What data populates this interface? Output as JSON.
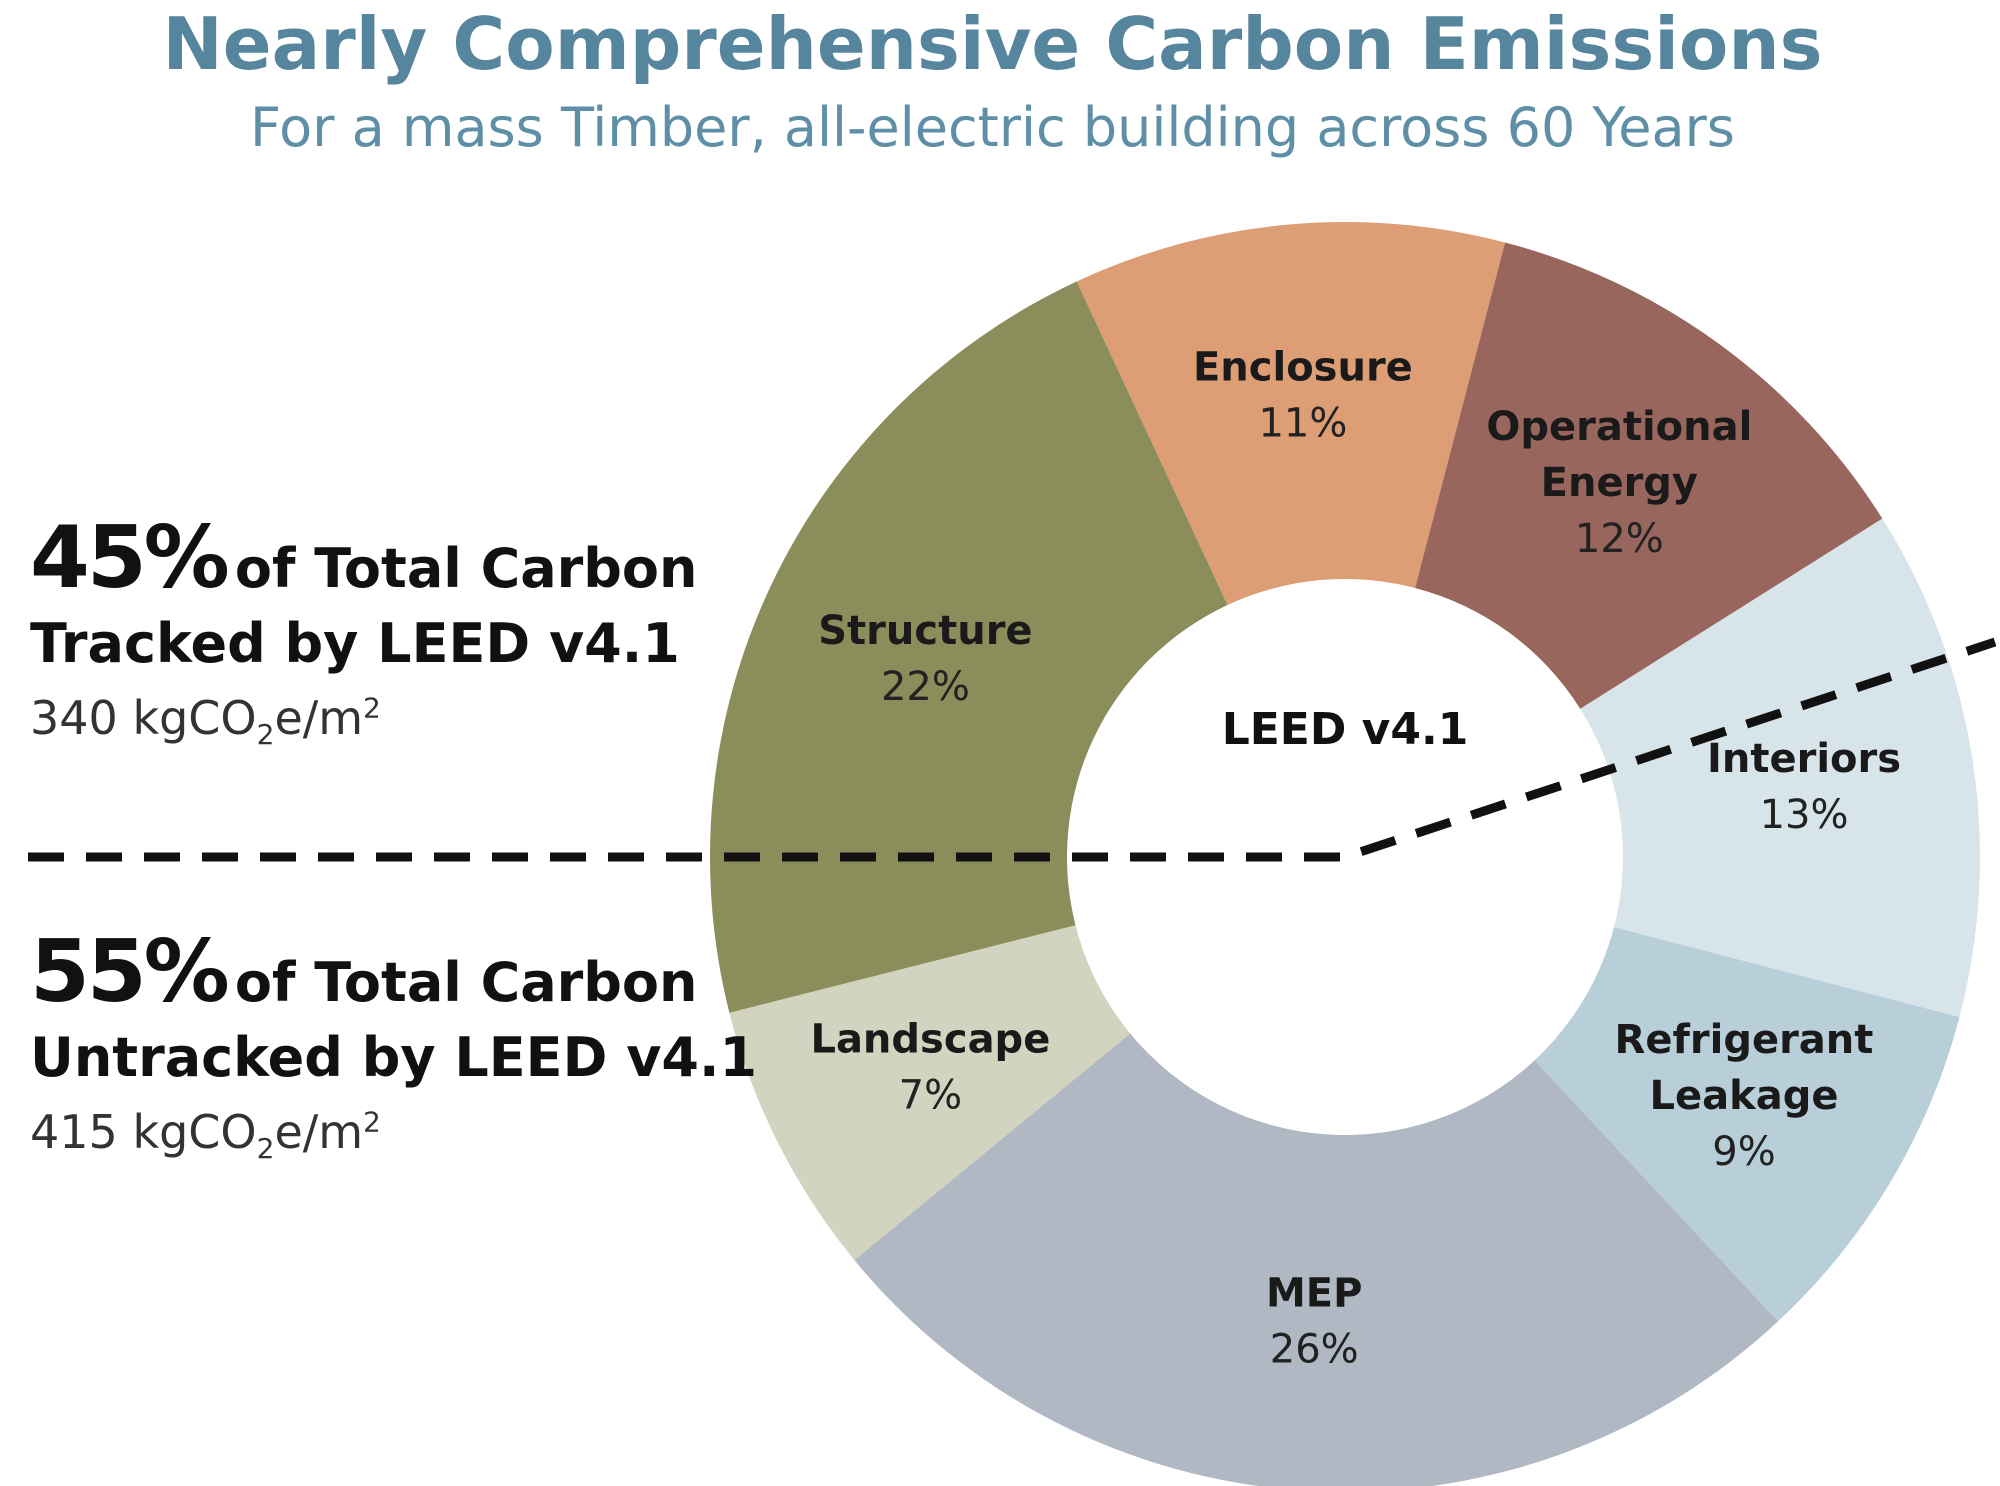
{
  "chart_data": {
    "type": "pie",
    "title": "Nearly Comprehensive Carbon Emissions",
    "subtitle": "For a mass Timber, all-electric building across 60 Years",
    "center_label": "LEED v4.1",
    "slices": [
      {
        "name": "Enclosure",
        "value": 11,
        "pct_label": "11%",
        "color": "#dd9d75"
      },
      {
        "name": "Operational Energy",
        "lines": [
          "Operational",
          "Energy"
        ],
        "value": 12,
        "pct_label": "12%",
        "color": "#99665e"
      },
      {
        "name": "Interiors",
        "value": 13,
        "pct_label": "13%",
        "color": "#d7e5eb"
      },
      {
        "name": "Refrigerant Leakage",
        "lines": [
          "Refrigerant",
          "Leakage"
        ],
        "value": 9,
        "pct_label": "9%",
        "color": "#b8cfda"
      },
      {
        "name": "MEP",
        "value": 26,
        "pct_label": "26%",
        "color": "#b0b8c4"
      },
      {
        "name": "Landscape",
        "value": 7,
        "pct_label": "7%",
        "color": "#d2d4bf"
      },
      {
        "name": "Structure",
        "value": 22,
        "pct_label": "22%",
        "color": "#8b8d5a"
      }
    ]
  },
  "tracked": {
    "percent": "45%",
    "rest": "of Total Carbon",
    "line2": "Tracked by LEED v4.1",
    "value": "340",
    "unit_prefix": "kgCO",
    "unit_sub": "2",
    "unit_mid": "e/m",
    "unit_sup": "2"
  },
  "untracked": {
    "percent": "55%",
    "rest": "of Total Carbon",
    "line2": "Untracked by LEED v4.1",
    "value": "415",
    "unit_prefix": "kgCO",
    "unit_sub": "2",
    "unit_mid": "e/m",
    "unit_sup": "2"
  }
}
